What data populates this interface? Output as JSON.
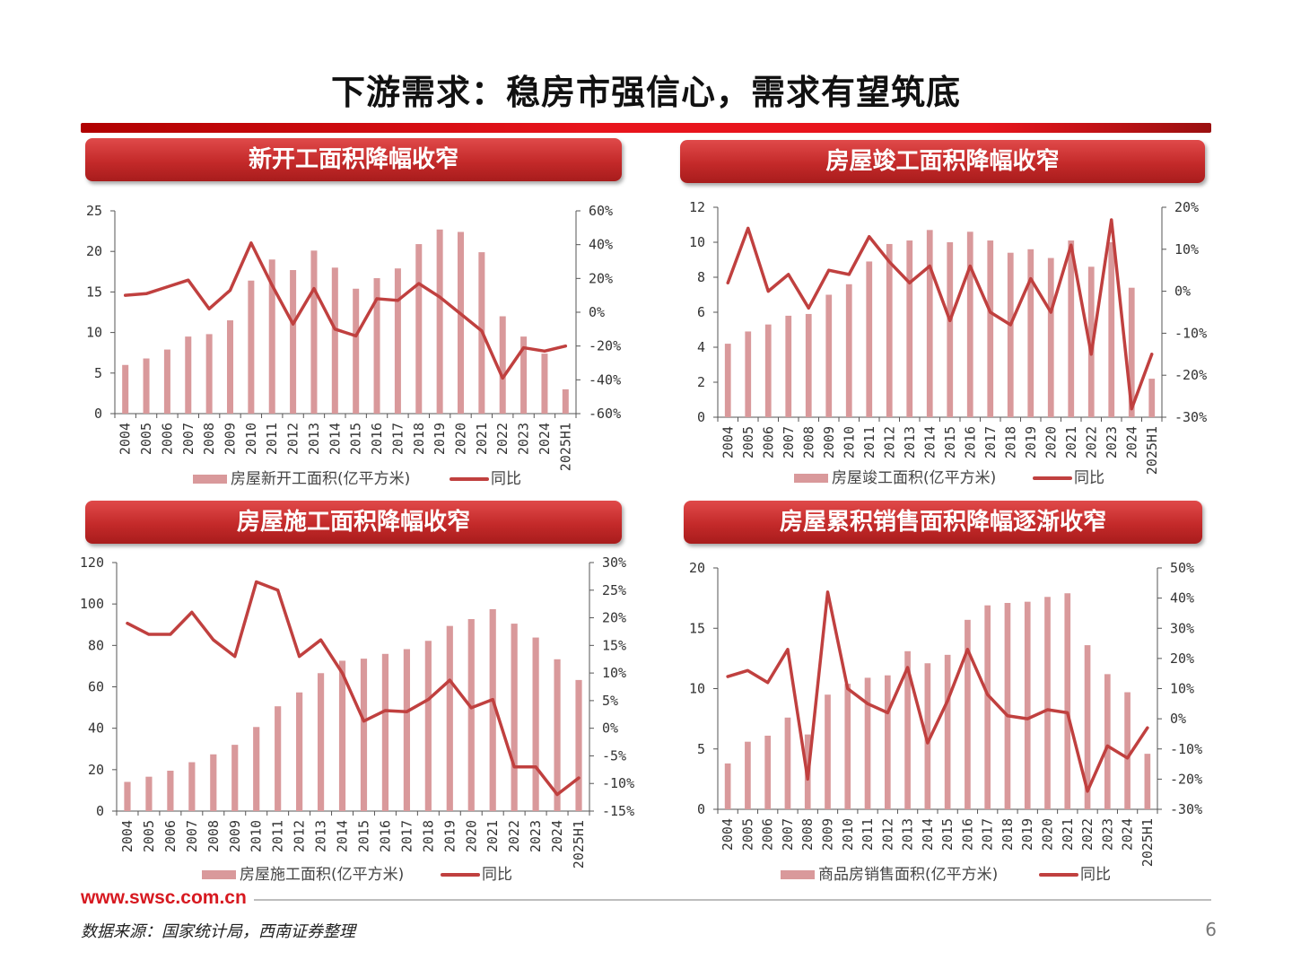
{
  "page": {
    "title": "下游需求：稳房市强信心，需求有望筑底",
    "url": "www.swsc.com.cn",
    "source": "数据来源：国家统计局，西南证券整理",
    "page_number": "6",
    "bar_color": "#d9999b",
    "line_color": "#c0403f",
    "accent": "#d71920"
  },
  "panels": [
    {
      "header": "新开工面积降幅收窄"
    },
    {
      "header": "房屋竣工面积降幅收窄"
    },
    {
      "header": "房屋施工面积降幅收窄"
    },
    {
      "header": "房屋累积销售面积降幅逐渐收窄"
    }
  ],
  "chart_data": [
    {
      "type": "bar",
      "categories": [
        "2004",
        "2005",
        "2006",
        "2007",
        "2008",
        "2009",
        "2010",
        "2011",
        "2012",
        "2013",
        "2014",
        "2015",
        "2016",
        "2017",
        "2018",
        "2019",
        "2020",
        "2021",
        "2022",
        "2023",
        "2024",
        "2025H1"
      ],
      "series": [
        {
          "name": "房屋新开工面积(亿平方米)",
          "type": "bar",
          "axis": "left",
          "values": [
            6.0,
            6.8,
            7.9,
            9.5,
            9.8,
            11.5,
            16.4,
            19.0,
            17.7,
            20.1,
            18.0,
            15.4,
            16.7,
            17.9,
            20.9,
            22.7,
            22.4,
            19.9,
            12.0,
            9.5,
            7.4,
            3.0
          ]
        },
        {
          "name": "同比",
          "type": "line",
          "axis": "right",
          "values": [
            10,
            11,
            15,
            19,
            2,
            13,
            41,
            16,
            -7,
            14,
            -10,
            -14,
            8,
            7,
            17,
            9,
            -1,
            -11,
            -39,
            -21,
            -23,
            -20
          ]
        }
      ],
      "left_axis": {
        "min": 0,
        "max": 25,
        "ticks": [
          "0",
          "5",
          "10",
          "15",
          "20",
          "25"
        ]
      },
      "right_axis": {
        "min": -60,
        "max": 60,
        "ticks": [
          "-60%",
          "-40%",
          "-20%",
          "0%",
          "20%",
          "40%",
          "60%"
        ]
      },
      "legend": "bottom",
      "grid": false
    },
    {
      "type": "bar",
      "categories": [
        "2004",
        "2005",
        "2006",
        "2007",
        "2008",
        "2009",
        "2010",
        "2011",
        "2012",
        "2013",
        "2014",
        "2015",
        "2016",
        "2017",
        "2018",
        "2019",
        "2020",
        "2021",
        "2022",
        "2023",
        "2024",
        "2025H1"
      ],
      "series": [
        {
          "name": "房屋竣工面积(亿平方米)",
          "type": "bar",
          "axis": "left",
          "values": [
            4.2,
            4.9,
            5.3,
            5.8,
            5.9,
            7.0,
            7.6,
            8.9,
            9.9,
            10.1,
            10.7,
            10.0,
            10.6,
            10.1,
            9.4,
            9.6,
            9.1,
            10.1,
            8.6,
            10.0,
            7.4,
            2.2
          ]
        },
        {
          "name": "同比",
          "type": "line",
          "axis": "right",
          "values": [
            2,
            15,
            0,
            4,
            -4,
            5,
            4,
            13,
            7,
            2,
            6,
            -7,
            6,
            -5,
            -8,
            3,
            -5,
            11,
            -15,
            17,
            -28,
            -15
          ]
        }
      ],
      "left_axis": {
        "min": 0,
        "max": 12,
        "ticks": [
          "0",
          "2",
          "4",
          "6",
          "8",
          "10",
          "12"
        ]
      },
      "right_axis": {
        "min": -30,
        "max": 20,
        "ticks": [
          "-30%",
          "-20%",
          "-10%",
          "0%",
          "10%",
          "20%"
        ]
      },
      "legend": "bottom",
      "grid": false
    },
    {
      "type": "bar",
      "categories": [
        "2004",
        "2005",
        "2006",
        "2007",
        "2008",
        "2009",
        "2010",
        "2011",
        "2012",
        "2013",
        "2014",
        "2015",
        "2016",
        "2017",
        "2018",
        "2019",
        "2020",
        "2021",
        "2022",
        "2023",
        "2024",
        "2025H1"
      ],
      "series": [
        {
          "name": "房屋施工面积(亿平方米)",
          "type": "bar",
          "axis": "left",
          "values": [
            14.1,
            16.6,
            19.5,
            23.6,
            27.4,
            32.0,
            40.6,
            50.6,
            57.3,
            66.6,
            72.6,
            73.6,
            75.9,
            78.2,
            82.2,
            89.4,
            92.7,
            97.5,
            90.5,
            83.8,
            73.3,
            63.3
          ]
        },
        {
          "name": "同比",
          "type": "line",
          "axis": "right",
          "values": [
            19,
            17,
            17,
            21,
            16,
            13,
            26.5,
            25,
            13,
            16,
            10,
            1.3,
            3.2,
            3,
            5.2,
            8.7,
            3.7,
            5.2,
            -7,
            -7,
            -12,
            -9
          ]
        }
      ],
      "left_axis": {
        "min": 0,
        "max": 120,
        "ticks": [
          "0",
          "20",
          "40",
          "60",
          "80",
          "100",
          "120"
        ]
      },
      "right_axis": {
        "min": -15,
        "max": 30,
        "ticks": [
          "-15%",
          "-10%",
          "-5%",
          "0%",
          "5%",
          "10%",
          "15%",
          "20%",
          "25%",
          "30%"
        ]
      },
      "legend": "bottom",
      "grid": false
    },
    {
      "type": "bar",
      "categories": [
        "2004",
        "2005",
        "2006",
        "2007",
        "2008",
        "2009",
        "2010",
        "2011",
        "2012",
        "2013",
        "2014",
        "2015",
        "2016",
        "2017",
        "2018",
        "2019",
        "2020",
        "2021",
        "2022",
        "2023",
        "2024",
        "2025H1"
      ],
      "series": [
        {
          "name": "商品房销售面积(亿平方米)",
          "type": "bar",
          "axis": "left",
          "values": [
            3.8,
            5.6,
            6.1,
            7.6,
            6.2,
            9.5,
            10.4,
            10.9,
            11.1,
            13.1,
            12.1,
            12.8,
            15.7,
            16.9,
            17.1,
            17.2,
            17.6,
            17.9,
            13.6,
            11.2,
            9.7,
            4.6
          ]
        },
        {
          "name": "同比",
          "type": "line",
          "axis": "right",
          "values": [
            14,
            16,
            12,
            23,
            -20,
            42,
            10,
            5,
            2,
            17,
            -8,
            6,
            23,
            8,
            1,
            0,
            3,
            2,
            -24,
            -9,
            -13,
            -3
          ]
        }
      ],
      "left_axis": {
        "min": 0,
        "max": 20,
        "ticks": [
          "0",
          "5",
          "10",
          "15",
          "20"
        ]
      },
      "right_axis": {
        "min": -30,
        "max": 50,
        "ticks": [
          "-30%",
          "-20%",
          "-10%",
          "0%",
          "10%",
          "20%",
          "30%",
          "40%",
          "50%"
        ]
      },
      "legend": "bottom",
      "grid": false
    }
  ]
}
